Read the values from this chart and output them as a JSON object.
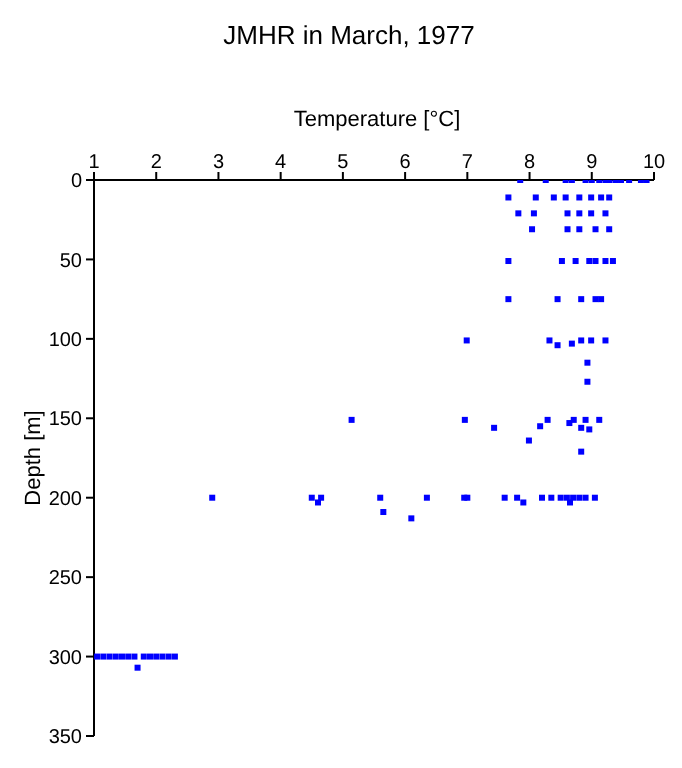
{
  "chart_data": {
    "type": "scatter",
    "title": "JMHR in March, 1977",
    "xlabel": "Temperature [°C]",
    "ylabel": "Depth [m]",
    "x": [
      7.85,
      8.26,
      8.58,
      8.68,
      8.9,
      9.0,
      9.12,
      9.22,
      9.28,
      9.38,
      9.47,
      9.6,
      9.79,
      9.88,
      7.66,
      8.1,
      8.39,
      8.58,
      8.8,
      8.99,
      9.15,
      9.28,
      7.82,
      8.07,
      8.61,
      8.8,
      8.99,
      9.22,
      8.04,
      8.61,
      8.8,
      9.06,
      9.28,
      7.66,
      8.52,
      8.74,
      8.96,
      9.06,
      9.22,
      9.34,
      7.66,
      8.45,
      8.83,
      9.06,
      9.15,
      6.99,
      8.32,
      8.45,
      8.68,
      8.83,
      8.99,
      9.22,
      8.93,
      8.93,
      5.14,
      6.96,
      7.43,
      8.17,
      8.29,
      8.64,
      8.71,
      8.9,
      9.12,
      8.83,
      8.96,
      7.99,
      8.83,
      2.9,
      4.5,
      4.65,
      5.6,
      6.35,
      6.95,
      7.0,
      7.6,
      7.8,
      8.2,
      8.35,
      8.5,
      8.6,
      8.7,
      8.8,
      8.9,
      9.05,
      4.6,
      7.9,
      8.65,
      5.65,
      6.1,
      1.05,
      1.15,
      1.25,
      1.35,
      1.45,
      1.55,
      1.65,
      1.8,
      1.9,
      2.0,
      2.1,
      2.2,
      2.3,
      1.7
    ],
    "values": [
      0,
      0,
      0,
      0,
      0,
      0,
      0,
      0,
      0,
      0,
      0,
      0,
      0,
      0,
      11,
      11,
      11,
      11,
      11,
      11,
      11,
      11,
      21,
      21,
      21,
      21,
      21,
      21,
      31,
      31,
      31,
      31,
      31,
      51,
      51,
      51,
      51,
      51,
      51,
      51,
      75,
      75,
      75,
      75,
      75,
      101,
      101,
      104,
      103,
      101,
      101,
      101,
      115,
      127,
      151,
      151,
      156,
      155,
      151,
      153,
      151,
      151,
      151,
      156,
      157,
      164,
      171,
      200,
      200,
      200,
      200,
      200,
      200,
      200,
      200,
      200,
      200,
      200,
      200,
      200,
      200,
      200,
      200,
      200,
      203,
      203,
      203,
      209,
      213,
      300,
      300,
      300,
      300,
      300,
      300,
      300,
      300,
      300,
      300,
      300,
      300,
      300,
      307
    ],
    "color": "#0000ff",
    "marker": "square",
    "xlim": [
      1,
      10
    ],
    "xticks": [
      1,
      2,
      3,
      4,
      5,
      6,
      7,
      8,
      9,
      10
    ],
    "ylim": [
      350,
      0
    ],
    "yticks": [
      0,
      50,
      100,
      150,
      200,
      250,
      300,
      350
    ]
  }
}
